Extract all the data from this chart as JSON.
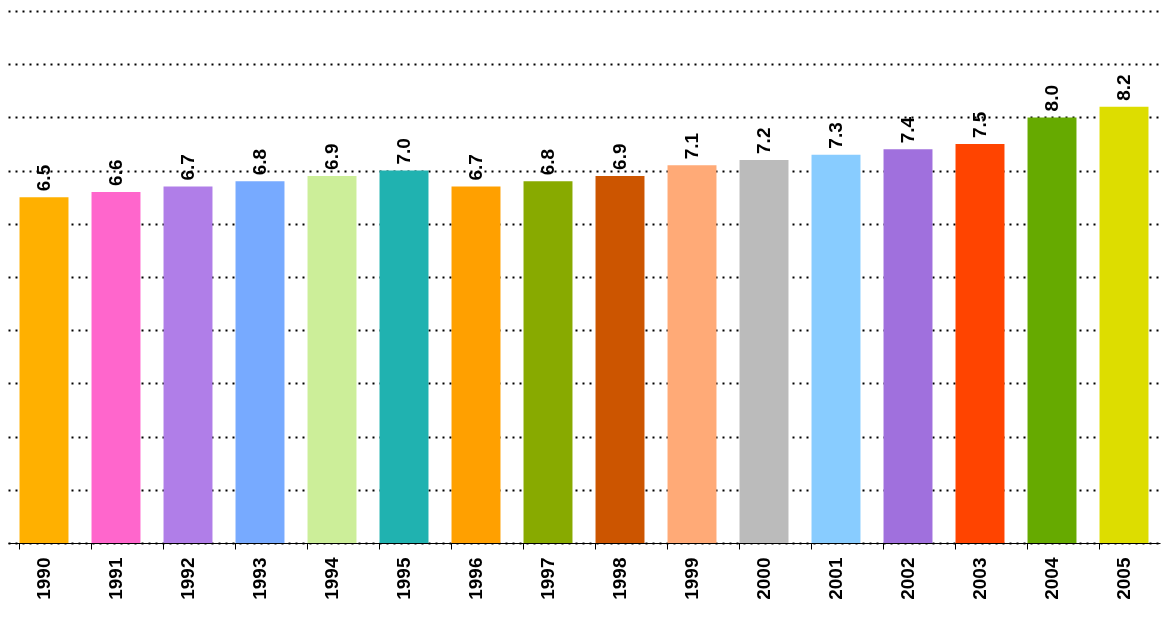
{
  "chart_data": {
    "type": "bar",
    "categories": [
      "1990",
      "1991",
      "1992",
      "1993",
      "1994",
      "1995",
      "1996",
      "1997",
      "1998",
      "1999",
      "2000",
      "2001",
      "2002",
      "2003",
      "2004",
      "2005"
    ],
    "values": [
      6.5,
      6.6,
      6.7,
      6.8,
      6.9,
      7.0,
      6.7,
      6.8,
      6.9,
      7.1,
      7.2,
      7.3,
      7.4,
      7.5,
      8.0,
      8.2
    ],
    "value_labels": [
      "6.5",
      "6.6",
      "6.7",
      "6.8",
      "6.9",
      "7.0",
      "6.7",
      "6.8",
      "6.9",
      "7.1",
      "7.2",
      "7.3",
      "7.4",
      "7.5",
      "8.0",
      "8.2"
    ],
    "colors": [
      "#ffb000",
      "#ff66cc",
      "#b07ee8",
      "#77aaff",
      "#ccee99",
      "#20b2b0",
      "#ffa000",
      "#88aa00",
      "#cc5500",
      "#ffaa77",
      "#bbbbbb",
      "#88ccff",
      "#a070dd",
      "#ff4400",
      "#66aa00",
      "#dddd00"
    ],
    "ylim": [
      0,
      10
    ],
    "yticks": [
      {
        "value": 0,
        "label": null
      },
      {
        "value": 1,
        "label": null
      },
      {
        "value": 2,
        "label": null
      },
      {
        "value": 3,
        "label": null
      },
      {
        "value": 4,
        "label": null
      },
      {
        "value": 5,
        "label": null
      },
      {
        "value": 6,
        "label": null
      },
      {
        "value": 7,
        "label": null
      },
      {
        "value": 8,
        "label": null
      },
      {
        "value": 9,
        "label": null
      },
      {
        "value": 10,
        "label": null
      }
    ],
    "grid": "y",
    "tick_labels": "x"
  }
}
